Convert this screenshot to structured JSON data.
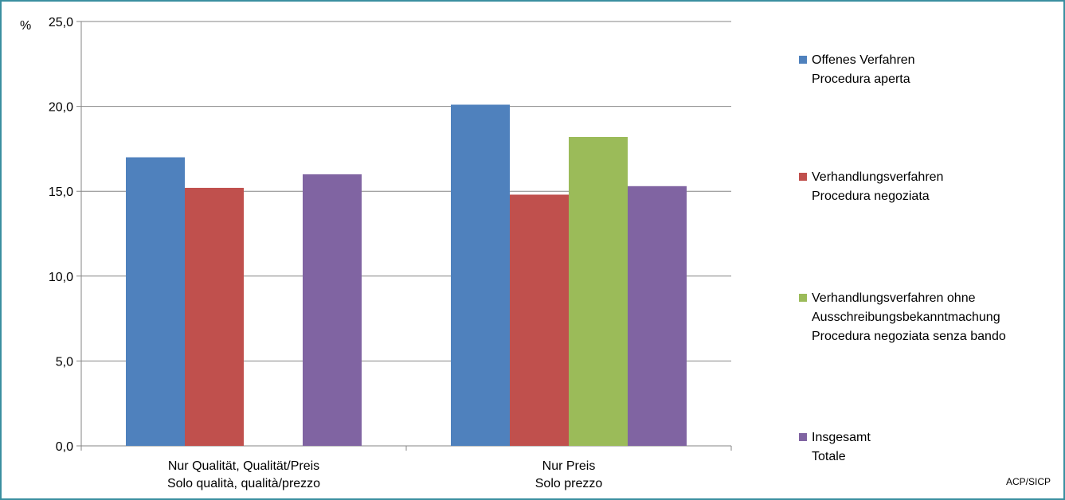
{
  "chart_data": {
    "type": "bar",
    "unit": "%",
    "categories": [
      [
        "Nur Qualität, Qualität/Preis",
        "Solo qualità, qualità/prezzo"
      ],
      [
        "Nur Preis",
        "Solo prezzo"
      ]
    ],
    "series": [
      {
        "name": [
          "Offenes Verfahren",
          "Procedura aperta"
        ],
        "color": "#4f81bd",
        "values": [
          17.0,
          20.1
        ]
      },
      {
        "name": [
          "Verhandlungsverfahren",
          "Procedura negoziata"
        ],
        "color": "#c0504d",
        "values": [
          15.2,
          14.8
        ]
      },
      {
        "name": [
          "Verhandlungsverfahren ohne",
          "Ausschreibungsbekanntmachung",
          "Procedura negoziata senza bando"
        ],
        "color": "#9bbb59",
        "values": [
          null,
          18.2
        ]
      },
      {
        "name": [
          "Insgesamt",
          "Totale"
        ],
        "color": "#8064a2",
        "values": [
          16.0,
          15.3
        ]
      }
    ],
    "ylim": [
      0,
      25
    ],
    "yticks": [
      "0,0",
      "5,0",
      "10,0",
      "15,0",
      "20,0",
      "25,0"
    ],
    "grid": true,
    "legend": "right"
  },
  "source": "ACP/SICP"
}
